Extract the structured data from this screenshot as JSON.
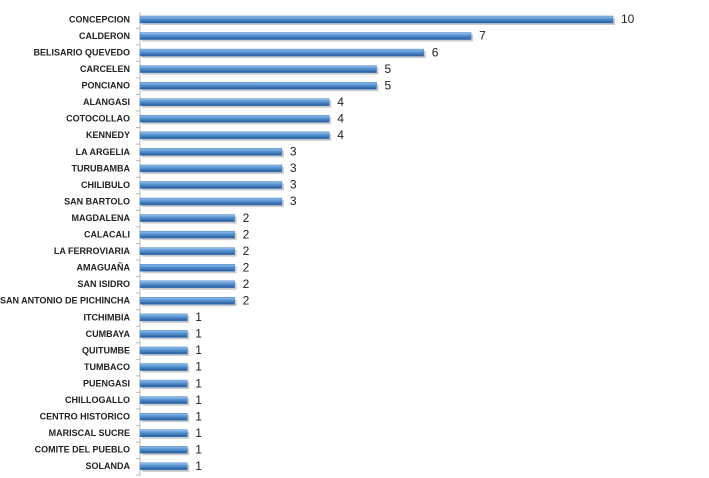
{
  "chart_data": {
    "type": "bar",
    "orientation": "horizontal",
    "categories": [
      "CONCEPCION",
      "CALDERON",
      "BELISARIO QUEVEDO",
      "CARCELEN",
      "PONCIANO",
      "ALANGASI",
      "COTOCOLLAO",
      "KENNEDY",
      "LA ARGELIA",
      "TURUBAMBA",
      "CHILIBULO",
      "SAN BARTOLO",
      "MAGDALENA",
      "CALACALI",
      "LA FERROVIARIA",
      "AMAGUAÑA",
      "SAN ISIDRO",
      "SAN ANTONIO DE PICHINCHA",
      "ITCHIMBIA",
      "CUMBAYA",
      "QUITUMBE",
      "TUMBACO",
      "PUENGASI",
      "CHILLOGALLO",
      "CENTRO HISTORICO",
      "MARISCAL SUCRE",
      "COMITE DEL PUEBLO",
      "SOLANDA"
    ],
    "values": [
      10,
      7,
      6,
      5,
      5,
      4,
      4,
      4,
      3,
      3,
      3,
      3,
      2,
      2,
      2,
      2,
      2,
      2,
      1,
      1,
      1,
      1,
      1,
      1,
      1,
      1,
      1,
      1
    ],
    "color": "#3f7fc4",
    "xlim": [
      0,
      10
    ]
  }
}
